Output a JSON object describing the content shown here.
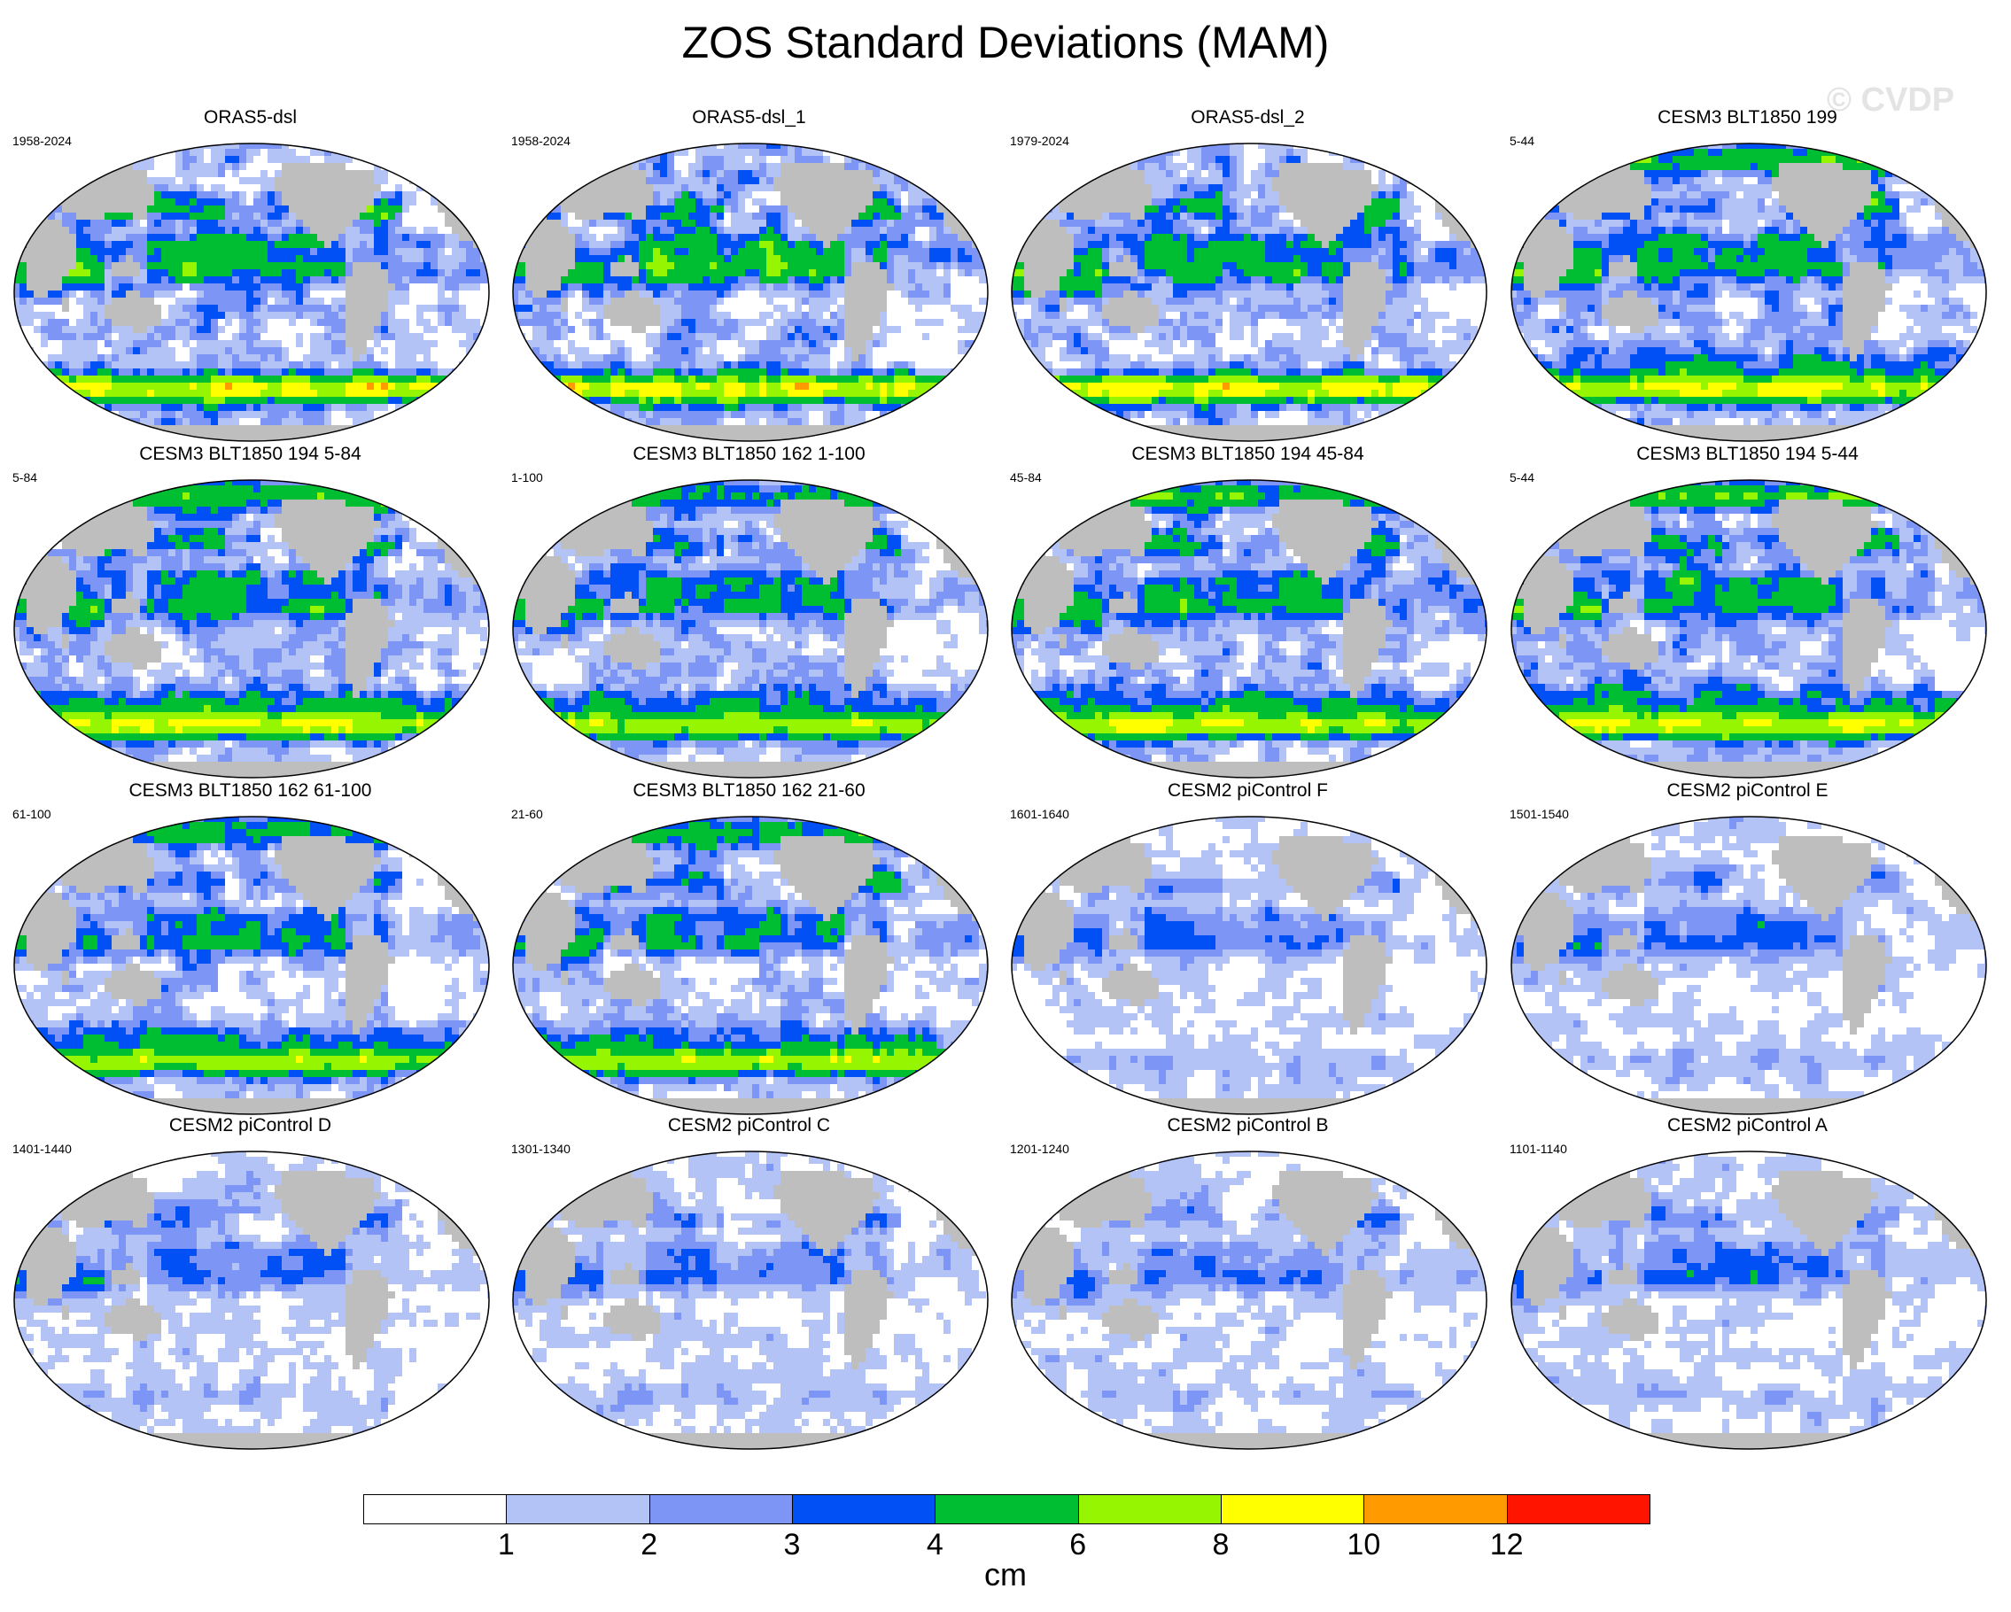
{
  "figure": {
    "title": "ZOS Standard Deviations (MAM)",
    "watermark": "© CVDP",
    "units": "cm"
  },
  "colorbar": {
    "levels": [
      1,
      2,
      3,
      4,
      6,
      8,
      10,
      12
    ],
    "tick_labels": [
      "1",
      "2",
      "3",
      "4",
      "6",
      "8",
      "10",
      "12"
    ],
    "colors": [
      "#ffffff",
      "#b4c3f5",
      "#7d96f5",
      "#0050f5",
      "#00be32",
      "#96f500",
      "#ffff00",
      "#ff9b00",
      "#ff1400"
    ]
  },
  "map_style": {
    "land_color": "#bebebe",
    "missing_color": "#ffffff"
  },
  "panels": [
    {
      "title": "ORAS5-dsl",
      "years": "1958-2024",
      "intensity": 1.15,
      "style": "obs"
    },
    {
      "title": "ORAS5-dsl_1",
      "years": "1958-2024",
      "intensity": 1.15,
      "style": "obs"
    },
    {
      "title": "ORAS5-dsl_2",
      "years": "1979-2024",
      "intensity": 1.12,
      "style": "obs"
    },
    {
      "title": "CESM3 BLT1850 199",
      "years": "5-44",
      "intensity": 1.1,
      "style": "cesm3"
    },
    {
      "title": "CESM3 BLT1850 194 5-84",
      "years": "5-84",
      "intensity": 1.08,
      "style": "cesm3"
    },
    {
      "title": "CESM3 BLT1850 162 1-100",
      "years": "1-100",
      "intensity": 1.0,
      "style": "cesm3"
    },
    {
      "title": "CESM3 BLT1850 194 45-84",
      "years": "45-84",
      "intensity": 1.05,
      "style": "cesm3"
    },
    {
      "title": "CESM3 BLT1850 194 5-44",
      "years": "5-44",
      "intensity": 1.1,
      "style": "cesm3"
    },
    {
      "title": "CESM3 BLT1850 162 61-100",
      "years": "61-100",
      "intensity": 0.98,
      "style": "cesm3"
    },
    {
      "title": "CESM3 BLT1850 162 21-60",
      "years": "21-60",
      "intensity": 0.98,
      "style": "cesm3"
    },
    {
      "title": "CESM2 piControl F",
      "years": "1601-1640",
      "intensity": 0.7,
      "style": "cesm2"
    },
    {
      "title": "CESM2 piControl E",
      "years": "1501-1540",
      "intensity": 0.72,
      "style": "cesm2"
    },
    {
      "title": "CESM2 piControl D",
      "years": "1401-1440",
      "intensity": 0.7,
      "style": "cesm2"
    },
    {
      "title": "CESM2 piControl C",
      "years": "1301-1340",
      "intensity": 0.7,
      "style": "cesm2"
    },
    {
      "title": "CESM2 piControl B",
      "years": "1201-1240",
      "intensity": 0.7,
      "style": "cesm2"
    },
    {
      "title": "CESM2 piControl A",
      "years": "1101-1140",
      "intensity": 0.72,
      "style": "cesm2"
    }
  ]
}
